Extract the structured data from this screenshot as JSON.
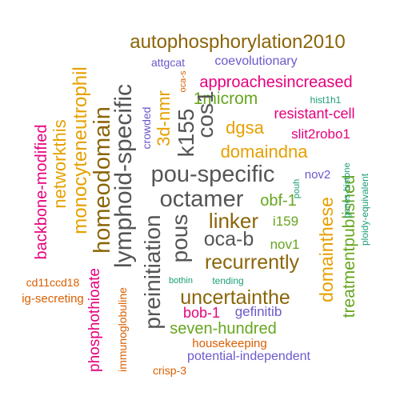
{
  "palette": {
    "dark_gray": "#555555",
    "brown": "#8B6508",
    "gold": "#E6A000",
    "magenta": "#E6007E",
    "green": "#66A61E",
    "purple": "#6A5ACD",
    "teal": "#1B9E77",
    "orange": "#D95F02"
  },
  "words": [
    {
      "text": "autophosphorylation2010",
      "color": "#8B6508"
    },
    {
      "text": "attgcat",
      "color": "#6A5ACD"
    },
    {
      "text": "coevolutionary",
      "color": "#6A5ACD"
    },
    {
      "text": "approachesincreased",
      "color": "#E6007E"
    },
    {
      "text": "1microm",
      "color": "#66A61E"
    },
    {
      "text": "hist1h1",
      "color": "#1B9E77"
    },
    {
      "text": "resistant-cell",
      "color": "#E6007E"
    },
    {
      "text": "dgsa",
      "color": "#E6A000"
    },
    {
      "text": "slit2robo1",
      "color": "#E6007E"
    },
    {
      "text": "domaindna",
      "color": "#E6A000"
    },
    {
      "text": "pou-specific",
      "color": "#555555"
    },
    {
      "text": "nov2",
      "color": "#6A5ACD"
    },
    {
      "text": "octamer",
      "color": "#555555"
    },
    {
      "text": "obf-1",
      "color": "#66A61E"
    },
    {
      "text": "linker",
      "color": "#8B6508"
    },
    {
      "text": "i159",
      "color": "#66A61E"
    },
    {
      "text": "oca-b",
      "color": "#555555"
    },
    {
      "text": "nov1",
      "color": "#66A61E"
    },
    {
      "text": "recurrently",
      "color": "#8B6508"
    },
    {
      "text": "uncertainthe",
      "color": "#8B6508"
    },
    {
      "text": "bob-1",
      "color": "#E6007E"
    },
    {
      "text": "gefinitib",
      "color": "#6A5ACD"
    },
    {
      "text": "seven-hundred",
      "color": "#66A61E"
    },
    {
      "text": "housekeeping",
      "color": "#D95F02"
    },
    {
      "text": "potential-independent",
      "color": "#6A5ACD"
    },
    {
      "text": "crisp-3",
      "color": "#D95F02"
    },
    {
      "text": "cd11ccd18",
      "color": "#D95F02"
    },
    {
      "text": "ig-secreting",
      "color": "#D95F02"
    },
    {
      "text": "bothin",
      "color": "#1B9E77"
    },
    {
      "text": "tending",
      "color": "#1B9E77"
    },
    {
      "text": "backbone-modified",
      "color": "#E6007E"
    },
    {
      "text": "networkthis",
      "color": "#E6A000"
    },
    {
      "text": "monocyteneutrophil",
      "color": "#E6A000"
    },
    {
      "text": "homeodomain",
      "color": "#8B6508"
    },
    {
      "text": "lymphoid-specific",
      "color": "#555555"
    },
    {
      "text": "crowded",
      "color": "#6A5ACD"
    },
    {
      "text": "3d-nmr",
      "color": "#E6A000"
    },
    {
      "text": "oca-s",
      "color": "#D95F02"
    },
    {
      "text": "k155",
      "color": "#555555"
    },
    {
      "text": "cos1",
      "color": "#555555"
    },
    {
      "text": "pous",
      "color": "#555555"
    },
    {
      "text": "preinitiation",
      "color": "#555555"
    },
    {
      "text": "phosphothioate",
      "color": "#E6007E"
    },
    {
      "text": "immunoglobuline",
      "color": "#D95F02"
    },
    {
      "text": "domainthese",
      "color": "#E6A000"
    },
    {
      "text": "treatmentpublished",
      "color": "#66A61E"
    },
    {
      "text": "pouh",
      "color": "#1B9E77"
    },
    {
      "text": "genes-histone",
      "color": "#1B9E77"
    },
    {
      "text": "ploidy-equivalent",
      "color": "#1B9E77"
    }
  ]
}
